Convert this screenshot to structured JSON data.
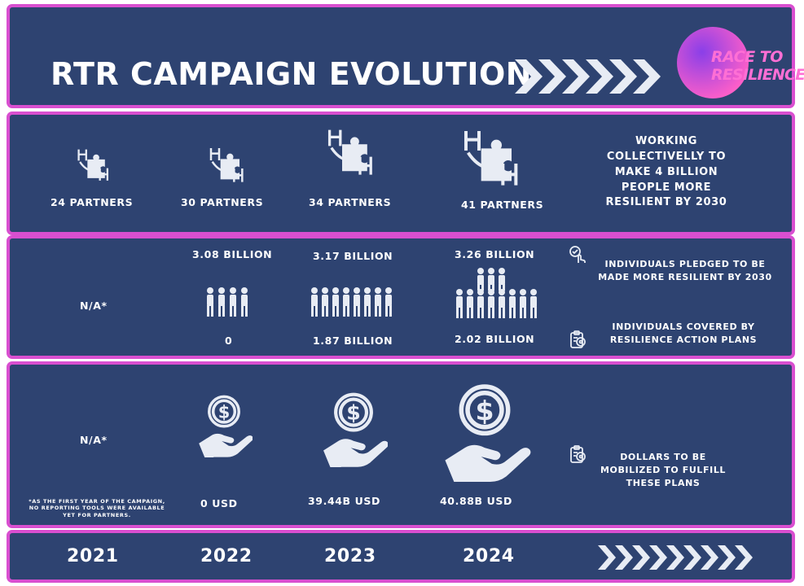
{
  "header": {
    "title": "RTR CAMPAIGN EVOLUTION",
    "logo_line1": "RACE TO",
    "logo_line2": "RESILIENCE"
  },
  "partners": {
    "items": [
      {
        "label": "24 PARTNERS"
      },
      {
        "label": "30 PARTNERS"
      },
      {
        "label": "34 PARTNERS"
      },
      {
        "label": "41 PARTNERS"
      }
    ],
    "goal": "WORKING COLLECTIVELLY TO MAKE 4 BILLION PEOPLE MORE RESILIENT BY 2030"
  },
  "individuals": {
    "na_2021": "N/A*",
    "pledged": [
      "3.08 BILLION",
      "3.17 BILLION",
      "3.26 BILLION"
    ],
    "covered": [
      "0",
      "1.87 BILLION",
      "2.02 BILLION"
    ],
    "pledged_label": "INDIVIDUALS PLEDGED TO BE MADE MORE RESILIENT BY  2030",
    "covered_label": "INDIVIDUALS COVERED BY RESILIENCE ACTION PLANS"
  },
  "dollars": {
    "na_2021": "N/A*",
    "footnote": "*AS THE FIRST YEAR OF THE CAMPAIGN, NO REPORTING TOOLS WERE AVAILABLE YET FOR PARTNERS.",
    "values": [
      "0 USD",
      "39.44B USD",
      "40.88B USD"
    ],
    "label": "DOLLARS TO BE MOBILIZED TO FULFILL THESE PLANS"
  },
  "years": [
    "2021",
    "2022",
    "2023",
    "2024"
  ],
  "colors": {
    "panel": "#2e4371",
    "border": "#d94fd0",
    "text": "#ffffff",
    "icon": "#e8ecf4",
    "logo_gradient": [
      "#c13ee0",
      "#ff5fc8"
    ]
  },
  "icons": [
    "puzzle-hands-icon",
    "people-group-icon",
    "money-hand-icon",
    "hand-pointer-icon",
    "target-clipboard-icon",
    "chevrons-icon"
  ]
}
